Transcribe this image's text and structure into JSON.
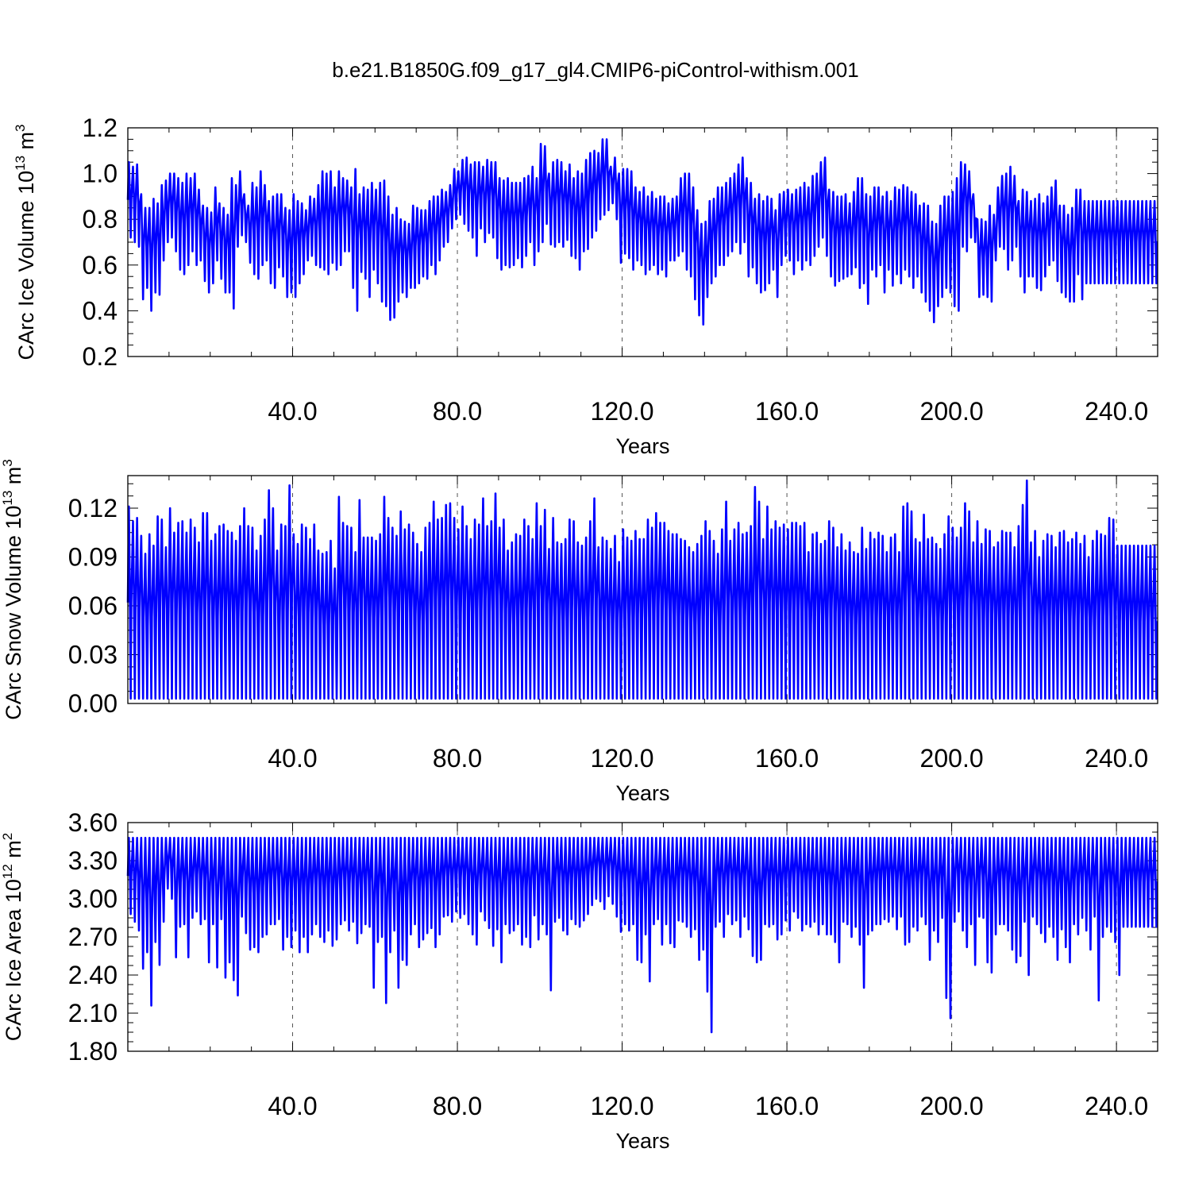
{
  "title": "b.e21.B1850G.f09_g17_gl4.CMIP6-piControl-withism.001",
  "colors": {
    "series": "#0000ff",
    "axes": "#000000",
    "grid": "#555555"
  },
  "chart_data": [
    {
      "type": "line",
      "ylabel": "CArc Ice Volume 10",
      "ylabel_sup": "13",
      "ylabel_unit": "m",
      "ylabel_unit_sup": "3",
      "xlabel": "Years",
      "xlim": [
        0,
        250
      ],
      "ylim": [
        0.2,
        1.2
      ],
      "xticks": [
        40,
        80,
        120,
        160,
        200,
        240
      ],
      "xtick_labels": [
        "40.0",
        "80.0",
        "120.0",
        "160.0",
        "200.0",
        "240.0"
      ],
      "yticks": [
        0.2,
        0.4,
        0.6,
        0.8,
        1.0,
        1.2
      ],
      "ytick_labels": [
        "0.2",
        "0.4",
        "0.6",
        "0.8",
        "1.0",
        "1.2"
      ],
      "grid": "vertical dashed",
      "sampling": "monthly, seasonal cycle",
      "annual_max": [
        1.05,
        1.03,
        1.04,
        0.91,
        0.85,
        0.85,
        0.89,
        0.87,
        0.95,
        0.97,
        1.0,
        1.0,
        0.98,
        0.96,
        1.0,
        0.98,
        1.0,
        0.93,
        0.86,
        0.85,
        0.83,
        0.94,
        0.87,
        0.85,
        0.82,
        0.98,
        0.95,
        1.01,
        0.91,
        0.86,
        0.96,
        0.94,
        1.01,
        0.95,
        0.88,
        0.9,
        0.91,
        0.91,
        0.85,
        0.84,
        0.91,
        0.88,
        0.87,
        0.84,
        0.9,
        0.89,
        0.95,
        1.01,
        1.0,
        1.01,
        0.94,
        1.01,
        0.98,
        0.97,
        0.94,
        1.02,
        0.91,
        0.94,
        0.93,
        0.96,
        0.93,
        0.96,
        0.97,
        0.9,
        0.82,
        0.85,
        0.8,
        0.79,
        0.78,
        0.86,
        0.85,
        0.84,
        0.84,
        0.88,
        0.9,
        0.9,
        0.93,
        0.92,
        0.95,
        1.02,
        1.01,
        1.06,
        1.07,
        1.04,
        1.05,
        1.05,
        1.03,
        1.06,
        1.05,
        1.05,
        0.98,
        0.97,
        0.98,
        0.96,
        0.96,
        0.96,
        0.98,
        0.99,
        1.03,
        0.98,
        1.13,
        1.12,
        1.0,
        1.05,
        1.06,
        1.05,
        1.01,
        1.04,
        0.98,
        1.01,
        1.0,
        1.06,
        1.09,
        1.1,
        1.09,
        1.15,
        1.15,
        1.03,
        1.07,
        1.0,
        1.02,
        1.02,
        1.01,
        0.94,
        0.92,
        0.94,
        0.9,
        0.92,
        0.89,
        0.9,
        0.9,
        0.87,
        0.89,
        0.9,
        0.98,
        1.0,
        1.0,
        0.94,
        0.84,
        0.78,
        0.79,
        0.88,
        0.89,
        0.94,
        0.94,
        0.96,
        0.98,
        1.0,
        1.04,
        1.07,
        0.98,
        0.96,
        0.89,
        0.91,
        0.88,
        0.9,
        0.89,
        0.84,
        0.91,
        0.92,
        0.93,
        0.91,
        0.93,
        0.94,
        0.96,
        0.94,
        0.99,
        1.0,
        1.05,
        1.07,
        0.93,
        0.92,
        0.9,
        0.9,
        0.91,
        0.87,
        0.92,
        0.98,
        0.98,
        0.91,
        0.9,
        0.94,
        0.94,
        0.9,
        0.92,
        0.88,
        0.94,
        0.93,
        0.95,
        0.94,
        0.92,
        0.91,
        0.86,
        0.87,
        0.86,
        0.79,
        0.78,
        0.86,
        0.9,
        0.9,
        0.92,
        0.98,
        1.05,
        1.04,
        1.01,
        0.91,
        0.8,
        0.8,
        0.79,
        0.86,
        0.82,
        0.94,
        0.99,
        1.0,
        1.03,
        0.99,
        0.88,
        0.93,
        0.92,
        0.88,
        0.89,
        0.91,
        0.87,
        0.9,
        0.94,
        0.97,
        0.86,
        0.86,
        0.82,
        0.85,
        0.93,
        0.93,
        0.88
      ],
      "annual_min": [
        0.72,
        0.7,
        0.68,
        0.45,
        0.5,
        0.4,
        0.48,
        0.47,
        0.62,
        0.7,
        0.72,
        0.66,
        0.58,
        0.56,
        0.6,
        0.66,
        0.6,
        0.62,
        0.53,
        0.48,
        0.52,
        0.62,
        0.54,
        0.48,
        0.48,
        0.41,
        0.68,
        0.73,
        0.7,
        0.61,
        0.56,
        0.54,
        0.6,
        0.62,
        0.52,
        0.5,
        0.59,
        0.55,
        0.46,
        0.48,
        0.46,
        0.52,
        0.56,
        0.62,
        0.64,
        0.6,
        0.59,
        0.58,
        0.56,
        0.61,
        0.58,
        0.6,
        0.66,
        0.66,
        0.5,
        0.4,
        0.57,
        0.54,
        0.46,
        0.58,
        0.52,
        0.44,
        0.42,
        0.36,
        0.37,
        0.44,
        0.48,
        0.46,
        0.5,
        0.5,
        0.52,
        0.55,
        0.54,
        0.6,
        0.56,
        0.62,
        0.68,
        0.7,
        0.76,
        0.8,
        0.82,
        0.78,
        0.75,
        0.72,
        0.64,
        0.76,
        0.7,
        0.74,
        0.72,
        0.63,
        0.58,
        0.6,
        0.59,
        0.6,
        0.63,
        0.59,
        0.64,
        0.7,
        0.6,
        0.66,
        0.7,
        0.78,
        0.69,
        0.68,
        0.7,
        0.68,
        0.71,
        0.64,
        0.63,
        0.58,
        0.66,
        0.67,
        0.72,
        0.75,
        0.8,
        0.82,
        0.84,
        0.87,
        0.8,
        0.61,
        0.65,
        0.63,
        0.58,
        0.62,
        0.6,
        0.56,
        0.58,
        0.6,
        0.56,
        0.58,
        0.55,
        0.62,
        0.62,
        0.64,
        0.66,
        0.58,
        0.55,
        0.45,
        0.38,
        0.34,
        0.46,
        0.52,
        0.55,
        0.6,
        0.6,
        0.64,
        0.66,
        0.7,
        0.65,
        0.7,
        0.55,
        0.59,
        0.52,
        0.48,
        0.49,
        0.52,
        0.58,
        0.46,
        0.6,
        0.64,
        0.62,
        0.56,
        0.62,
        0.58,
        0.62,
        0.6,
        0.64,
        0.68,
        0.72,
        0.64,
        0.55,
        0.51,
        0.53,
        0.54,
        0.55,
        0.56,
        0.59,
        0.5,
        0.52,
        0.43,
        0.58,
        0.55,
        0.6,
        0.48,
        0.58,
        0.51,
        0.56,
        0.52,
        0.58,
        0.55,
        0.5,
        0.55,
        0.48,
        0.44,
        0.4,
        0.35,
        0.42,
        0.46,
        0.5,
        0.48,
        0.42,
        0.4,
        0.68,
        0.66,
        0.72,
        0.7,
        0.46,
        0.47,
        0.46,
        0.44,
        0.62,
        0.68,
        0.67,
        0.58,
        0.62,
        0.68,
        0.55,
        0.48,
        0.55,
        0.55,
        0.5,
        0.49,
        0.55,
        0.6,
        0.62,
        0.53,
        0.48,
        0.46,
        0.44,
        0.44,
        0.56,
        0.45,
        0.52
      ]
    },
    {
      "type": "line",
      "ylabel": "CArc Snow Volume 10",
      "ylabel_sup": "13",
      "ylabel_unit": "m",
      "ylabel_unit_sup": "3",
      "xlabel": "Years",
      "xlim": [
        0,
        250
      ],
      "ylim": [
        0.0,
        0.14
      ],
      "xticks": [
        40,
        80,
        120,
        160,
        200,
        240
      ],
      "xtick_labels": [
        "40.0",
        "80.0",
        "120.0",
        "160.0",
        "200.0",
        "240.0"
      ],
      "yticks": [
        0.0,
        0.03,
        0.06,
        0.09,
        0.12
      ],
      "ytick_labels": [
        "0.00",
        "0.03",
        "0.06",
        "0.09",
        "0.12"
      ],
      "grid": "vertical dashed",
      "sampling": "monthly, seasonal cycle",
      "annual_max": [
        0.121,
        0.112,
        0.114,
        0.103,
        0.092,
        0.104,
        0.097,
        0.115,
        0.113,
        0.096,
        0.12,
        0.105,
        0.111,
        0.112,
        0.105,
        0.113,
        0.108,
        0.099,
        0.117,
        0.117,
        0.1,
        0.104,
        0.109,
        0.11,
        0.106,
        0.105,
        0.1,
        0.109,
        0.12,
        0.109,
        0.108,
        0.094,
        0.103,
        0.113,
        0.131,
        0.12,
        0.094,
        0.11,
        0.109,
        0.134,
        0.104,
        0.098,
        0.11,
        0.108,
        0.101,
        0.11,
        0.094,
        0.092,
        0.093,
        0.1,
        0.083,
        0.127,
        0.111,
        0.109,
        0.108,
        0.093,
        0.125,
        0.102,
        0.102,
        0.102,
        0.1,
        0.104,
        0.127,
        0.114,
        0.108,
        0.103,
        0.118,
        0.107,
        0.11,
        0.105,
        0.098,
        0.093,
        0.108,
        0.111,
        0.124,
        0.113,
        0.114,
        0.122,
        0.123,
        0.114,
        0.107,
        0.121,
        0.109,
        0.101,
        0.113,
        0.11,
        0.126,
        0.109,
        0.112,
        0.129,
        0.108,
        0.113,
        0.094,
        0.099,
        0.104,
        0.103,
        0.113,
        0.109,
        0.101,
        0.123,
        0.109,
        0.119,
        0.095,
        0.114,
        0.099,
        0.098,
        0.101,
        0.113,
        0.112,
        0.099,
        0.097,
        0.102,
        0.112,
        0.126,
        0.096,
        0.102,
        0.1,
        0.095,
        0.103,
        0.087,
        0.107,
        0.102,
        0.1,
        0.106,
        0.101,
        0.101,
        0.113,
        0.108,
        0.117,
        0.111,
        0.111,
        0.106,
        0.104,
        0.104,
        0.101,
        0.1,
        0.096,
        0.093,
        0.098,
        0.103,
        0.112,
        0.106,
        0.1,
        0.092,
        0.107,
        0.124,
        0.1,
        0.107,
        0.111,
        0.104,
        0.105,
        0.109,
        0.133,
        0.124,
        0.101,
        0.121,
        0.107,
        0.112,
        0.108,
        0.11,
        0.107,
        0.111,
        0.111,
        0.109,
        0.111,
        0.093,
        0.104,
        0.105,
        0.098,
        0.1,
        0.112,
        0.108,
        0.096,
        0.104,
        0.094,
        0.099,
        0.093,
        0.092,
        0.108,
        0.095,
        0.105,
        0.101,
        0.105,
        0.103,
        0.093,
        0.102,
        0.104,
        0.093,
        0.121,
        0.123,
        0.118,
        0.101,
        0.099,
        0.116,
        0.101,
        0.102,
        0.098,
        0.095,
        0.104,
        0.115,
        0.108,
        0.102,
        0.108,
        0.123,
        0.118,
        0.099,
        0.112,
        0.098,
        0.107,
        0.106,
        0.096,
        0.099,
        0.106,
        0.105,
        0.105,
        0.096,
        0.109,
        0.122,
        0.137,
        0.099,
        0.106,
        0.09,
        0.1,
        0.104,
        0.103,
        0.096,
        0.105,
        0.106,
        0.099,
        0.101,
        0.105,
        0.098,
        0.103,
        0.09,
        0.1,
        0.106,
        0.104,
        0.103,
        0.114,
        0.113,
        0.097
      ],
      "annual_min": 0.003
    },
    {
      "type": "line",
      "ylabel": "CArc Ice Area 10",
      "ylabel_sup": "12",
      "ylabel_unit": "m",
      "ylabel_unit_sup": "2",
      "xlabel": "Years",
      "xlim": [
        0,
        250
      ],
      "ylim": [
        1.8,
        3.6
      ],
      "xticks": [
        40,
        80,
        120,
        160,
        200,
        240
      ],
      "xtick_labels": [
        "40.0",
        "80.0",
        "120.0",
        "160.0",
        "200.0",
        "240.0"
      ],
      "yticks": [
        1.8,
        2.1,
        2.4,
        2.7,
        3.0,
        3.3,
        3.6
      ],
      "ytick_labels": [
        "1.80",
        "2.10",
        "2.40",
        "2.70",
        "3.00",
        "3.30",
        "3.60"
      ],
      "grid": "vertical dashed",
      "sampling": "monthly, seasonal cycle",
      "annual_max": 3.48,
      "annual_min": [
        2.88,
        2.82,
        2.75,
        2.45,
        2.58,
        2.16,
        2.66,
        2.48,
        2.82,
        3.08,
        3.0,
        2.54,
        2.78,
        2.8,
        2.54,
        2.85,
        2.9,
        2.8,
        2.84,
        2.5,
        2.8,
        2.46,
        2.84,
        2.38,
        2.5,
        2.36,
        2.24,
        2.86,
        2.73,
        2.6,
        2.62,
        2.58,
        2.7,
        2.72,
        2.8,
        2.8,
        2.84,
        2.6,
        2.7,
        2.62,
        2.75,
        2.58,
        2.7,
        2.58,
        2.72,
        2.8,
        2.7,
        2.66,
        2.75,
        2.63,
        2.68,
        2.8,
        2.83,
        2.75,
        2.82,
        2.65,
        2.73,
        2.8,
        2.78,
        2.3,
        2.66,
        2.7,
        2.18,
        2.58,
        2.75,
        2.3,
        2.52,
        2.48,
        2.72,
        2.8,
        2.62,
        2.68,
        2.73,
        2.77,
        2.62,
        2.72,
        2.86,
        2.87,
        2.82,
        2.9,
        2.85,
        2.88,
        2.8,
        2.72,
        2.64,
        2.9,
        2.83,
        2.77,
        2.63,
        2.76,
        2.5,
        2.8,
        2.73,
        2.75,
        2.8,
        2.64,
        2.7,
        2.62,
        2.87,
        2.68,
        2.8,
        2.72,
        2.28,
        2.82,
        2.85,
        2.75,
        2.72,
        2.84,
        2.8,
        2.78,
        2.83,
        2.88,
        2.95,
        3.0,
        2.98,
        2.92,
        3.02,
        2.96,
        2.86,
        2.74,
        2.8,
        2.75,
        2.8,
        2.52,
        2.5,
        2.72,
        2.35,
        2.8,
        2.84,
        2.64,
        2.8,
        2.65,
        2.62,
        2.83,
        2.82,
        2.78,
        2.7,
        2.76,
        2.52,
        2.6,
        2.27,
        1.95,
        2.78,
        2.82,
        2.7,
        2.88,
        2.8,
        2.83,
        2.7,
        2.86,
        2.76,
        2.55,
        2.5,
        2.52,
        2.8,
        2.78,
        2.8,
        2.68,
        2.72,
        2.83,
        2.75,
        2.9,
        2.85,
        2.75,
        2.8,
        2.78,
        2.82,
        2.72,
        2.8,
        2.72,
        2.72,
        2.66,
        2.5,
        2.82,
        2.8,
        2.7,
        2.78,
        2.64,
        2.3,
        2.72,
        2.75,
        2.8,
        2.8,
        2.84,
        2.82,
        2.86,
        2.76,
        2.86,
        2.64,
        2.66,
        2.78,
        2.75,
        2.86,
        2.8,
        2.52,
        2.75,
        2.66,
        2.85,
        2.22,
        2.06,
        2.82,
        2.9,
        2.75,
        2.62,
        2.8,
        2.48,
        2.86,
        2.85,
        2.5,
        2.42,
        2.72,
        2.8,
        2.8,
        2.75,
        2.6,
        2.5,
        2.55,
        2.82,
        2.4,
        2.86,
        2.8,
        2.73,
        2.66,
        2.78,
        2.7,
        2.52,
        2.76,
        2.62,
        2.5,
        2.8,
        2.72,
        2.85,
        2.75,
        2.6,
        2.86,
        2.2,
        2.7,
        2.78,
        2.74,
        2.66,
        2.4,
        2.78
      ]
    }
  ]
}
